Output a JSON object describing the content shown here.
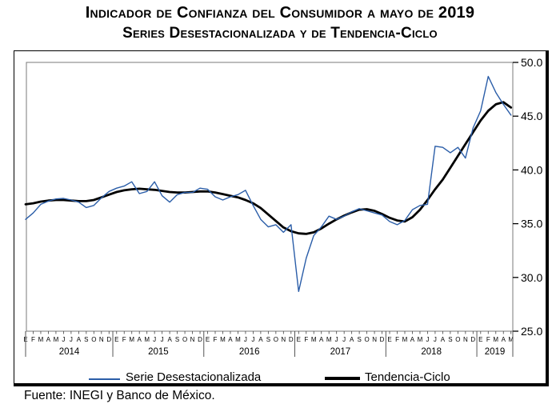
{
  "title": {
    "line1": "Indicador de Confianza del Consumidor a mayo de 2019",
    "line2": "Series Desestacionalizada y de Tendencia-Ciclo"
  },
  "legend": {
    "items": [
      {
        "label": "Serie Desestacionalizada",
        "color": "#2a5da8",
        "line_weight": "thin"
      },
      {
        "label": "Tendencia-Ciclo",
        "color": "#000000",
        "line_weight": "thick"
      }
    ]
  },
  "footer": {
    "source": "Fuente: INEGI y Banco de México."
  },
  "chart_data": {
    "type": "line",
    "title": "Indicador de Confianza del Consumidor a mayo de 2019",
    "subtitle": "Series Desestacionalizada y de Tendencia-Ciclo",
    "grid": false,
    "legend_position": "bottom",
    "x_axis": {
      "month_letters": [
        "E",
        "F",
        "M",
        "A",
        "M",
        "J",
        "J",
        "A",
        "S",
        "O",
        "N",
        "D"
      ],
      "years": [
        {
          "label": "2014",
          "n_months": 12
        },
        {
          "label": "2015",
          "n_months": 12
        },
        {
          "label": "2016",
          "n_months": 12
        },
        {
          "label": "2017",
          "n_months": 12
        },
        {
          "label": "2018",
          "n_months": 12
        },
        {
          "label": "2019",
          "n_months": 5
        }
      ]
    },
    "y_axis": {
      "position": "right",
      "range": [
        25,
        50
      ],
      "ticks": [
        {
          "value": 50,
          "label": "50.0"
        },
        {
          "value": 45,
          "label": "45.0"
        },
        {
          "value": 40,
          "label": "40.0"
        },
        {
          "value": 35,
          "label": "35.0"
        },
        {
          "value": 30,
          "label": "30.0"
        },
        {
          "value": 25,
          "label": "25.0"
        }
      ]
    },
    "series": [
      {
        "name": "Serie Desestacionalizada",
        "color": "#2a5da8",
        "stroke_width": 1.4,
        "values": [
          35.4,
          36.0,
          36.8,
          37.1,
          37.3,
          37.35,
          37.2,
          37.0,
          36.5,
          36.7,
          37.4,
          38.0,
          38.3,
          38.5,
          38.9,
          37.8,
          38.0,
          38.9,
          37.6,
          37.0,
          37.7,
          37.9,
          37.9,
          38.3,
          38.2,
          37.5,
          37.2,
          37.5,
          37.7,
          38.1,
          36.7,
          35.4,
          34.7,
          34.9,
          34.2,
          34.9,
          28.7,
          31.8,
          33.9,
          34.7,
          35.7,
          35.4,
          35.7,
          36.1,
          36.4,
          36.2,
          36.0,
          35.8,
          35.2,
          34.9,
          35.3,
          36.3,
          36.7,
          36.8,
          42.2,
          42.1,
          41.6,
          42.1,
          41.1,
          43.9,
          45.5,
          48.7,
          47.2,
          46.1,
          45.1
        ]
      },
      {
        "name": "Tendencia-Ciclo",
        "color": "#000000",
        "stroke_width": 2.8,
        "values": [
          36.8,
          36.9,
          37.05,
          37.15,
          37.2,
          37.2,
          37.15,
          37.1,
          37.1,
          37.2,
          37.45,
          37.7,
          37.95,
          38.1,
          38.2,
          38.25,
          38.2,
          38.15,
          38.05,
          37.95,
          37.9,
          37.9,
          37.95,
          38.0,
          38.0,
          37.9,
          37.75,
          37.6,
          37.45,
          37.2,
          36.9,
          36.45,
          35.85,
          35.25,
          34.65,
          34.3,
          34.1,
          34.05,
          34.2,
          34.55,
          35.0,
          35.4,
          35.75,
          36.05,
          36.3,
          36.35,
          36.2,
          35.9,
          35.55,
          35.3,
          35.2,
          35.6,
          36.3,
          37.2,
          38.2,
          39.1,
          40.2,
          41.3,
          42.4,
          43.5,
          44.6,
          45.5,
          46.1,
          46.3,
          45.8
        ]
      }
    ]
  }
}
